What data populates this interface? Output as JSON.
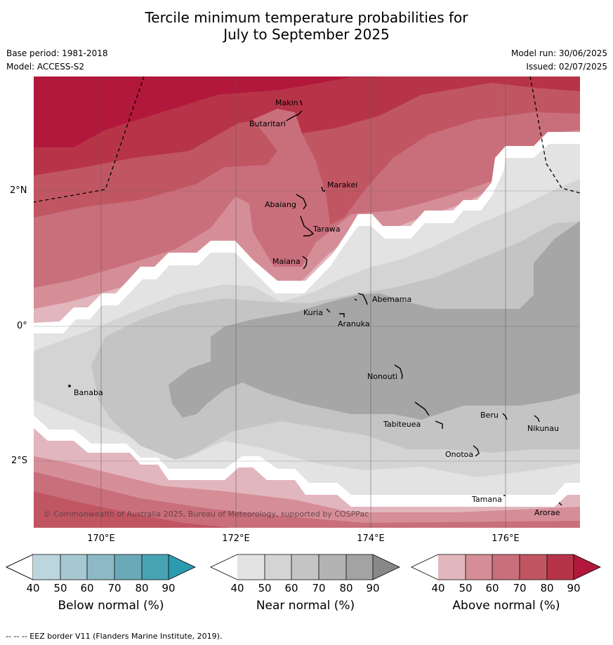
{
  "title_line1": "Tercile minimum temperature probabilities for",
  "title_line2": "July to September 2025",
  "base_period": "Base period: 1981-2018",
  "model": "Model: ACCESS-S2",
  "model_run": "Model run: 30/06/2025",
  "issued": "Issued: 02/07/2025",
  "copyright": "© Commonwealth of Australia 2025, Bureau of Meteorology, supported by COSPPac",
  "lat_labels": [
    "2°N",
    "0°",
    "2°S"
  ],
  "lon_labels": [
    "170°E",
    "172°E",
    "174°E",
    "176°E"
  ],
  "islands": [
    "Makin",
    "Butaritari",
    "Marakei",
    "Abaiang",
    "Tarawa",
    "Maiana",
    "Abemama",
    "Kuria",
    "Aranuka",
    "Nonouti",
    "Banaba",
    "Tabiteuea",
    "Beru",
    "Nikunau",
    "Onotoa",
    "Tamana",
    "Arorae"
  ],
  "colorbars": [
    {
      "label": "Below normal (%)",
      "ticks": [
        "40",
        "50",
        "60",
        "70",
        "80",
        "90"
      ],
      "colors": [
        "#ffffff",
        "#bdd5dc",
        "#a6c8d1",
        "#8cb9c5",
        "#6ba9b9",
        "#47a3b2",
        "#2b9bb0"
      ]
    },
    {
      "label": "Near normal (%)",
      "ticks": [
        "40",
        "50",
        "60",
        "70",
        "80",
        "90"
      ],
      "colors": [
        "#ffffff",
        "#e3e3e3",
        "#d4d4d4",
        "#c4c4c4",
        "#b3b3b3",
        "#a3a3a3",
        "#888888"
      ]
    },
    {
      "label": "Above normal (%)",
      "ticks": [
        "40",
        "50",
        "60",
        "70",
        "80",
        "90"
      ],
      "colors": [
        "#ffffff",
        "#e2b6bd",
        "#d58e97",
        "#c96f7b",
        "#c15663",
        "#b73448",
        "#b2183b"
      ]
    }
  ],
  "footer": "--  --  -- EEZ border V11 (Flanders Marine Institute, 2019)."
}
